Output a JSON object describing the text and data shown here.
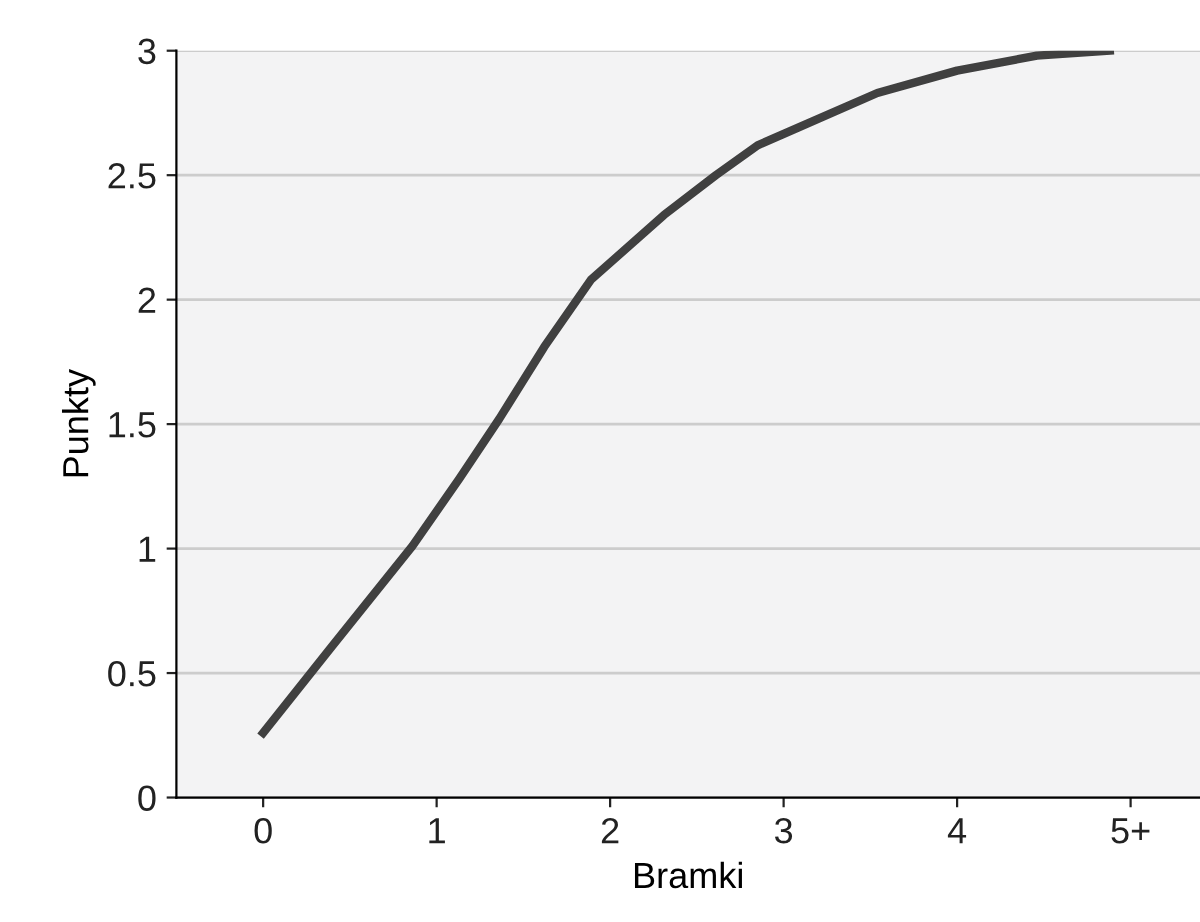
{
  "chart_data": {
    "type": "line",
    "xlabel": "Bramki",
    "ylabel": "Punkty",
    "x": [
      0,
      0.4,
      0.86,
      1.13,
      1.36,
      1.62,
      1.89,
      2.31,
      2.61,
      2.85,
      3.08,
      3.54,
      4.0,
      4.46,
      4.88
    ],
    "series": [
      {
        "color": "#404040",
        "values": [
          0.26,
          0.61,
          1.01,
          1.28,
          1.52,
          1.81,
          2.08,
          2.34,
          2.5,
          2.62,
          2.69,
          2.83,
          2.92,
          2.98,
          3.0
        ]
      }
    ],
    "xlim": [
      -0.5,
      5.4
    ],
    "ylim": [
      0,
      3
    ],
    "xticks": [
      0,
      1,
      2,
      3,
      4,
      {
        "value": 5,
        "label": "5+"
      }
    ],
    "yticks": [
      0,
      0.5,
      1,
      1.5,
      2,
      2.5,
      3
    ],
    "grid": "y",
    "marker": "none",
    "line_style": "solid",
    "legend": false
  }
}
